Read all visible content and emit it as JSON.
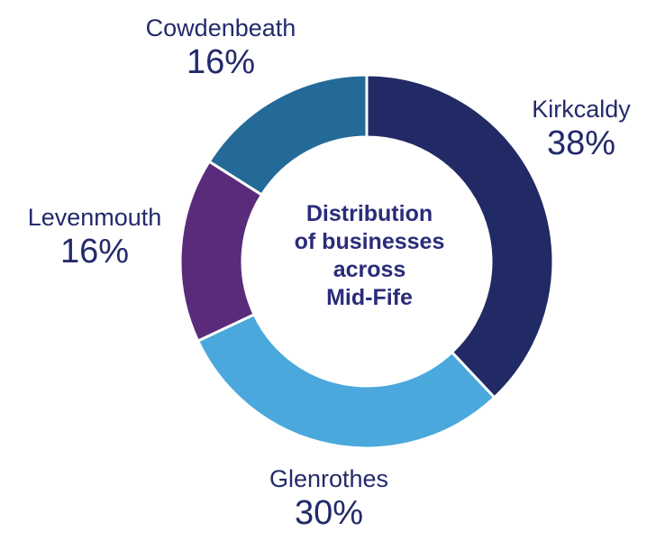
{
  "chart_data": {
    "type": "pie",
    "style": "donut",
    "title_lines": [
      "Distribution",
      "of businesses",
      "across",
      "Mid-Fife"
    ],
    "slices": [
      {
        "label": "Kirkcaldy",
        "value": 38,
        "value_label": "38%",
        "color": "#222a66"
      },
      {
        "label": "Glenrothes",
        "value": 30,
        "value_label": "30%",
        "color": "#4aa8dc"
      },
      {
        "label": "Levenmouth",
        "value": 16,
        "value_label": "16%",
        "color": "#5a2b7a"
      },
      {
        "label": "Cowdenbeath",
        "value": 16,
        "value_label": "16%",
        "color": "#246a98"
      }
    ]
  }
}
